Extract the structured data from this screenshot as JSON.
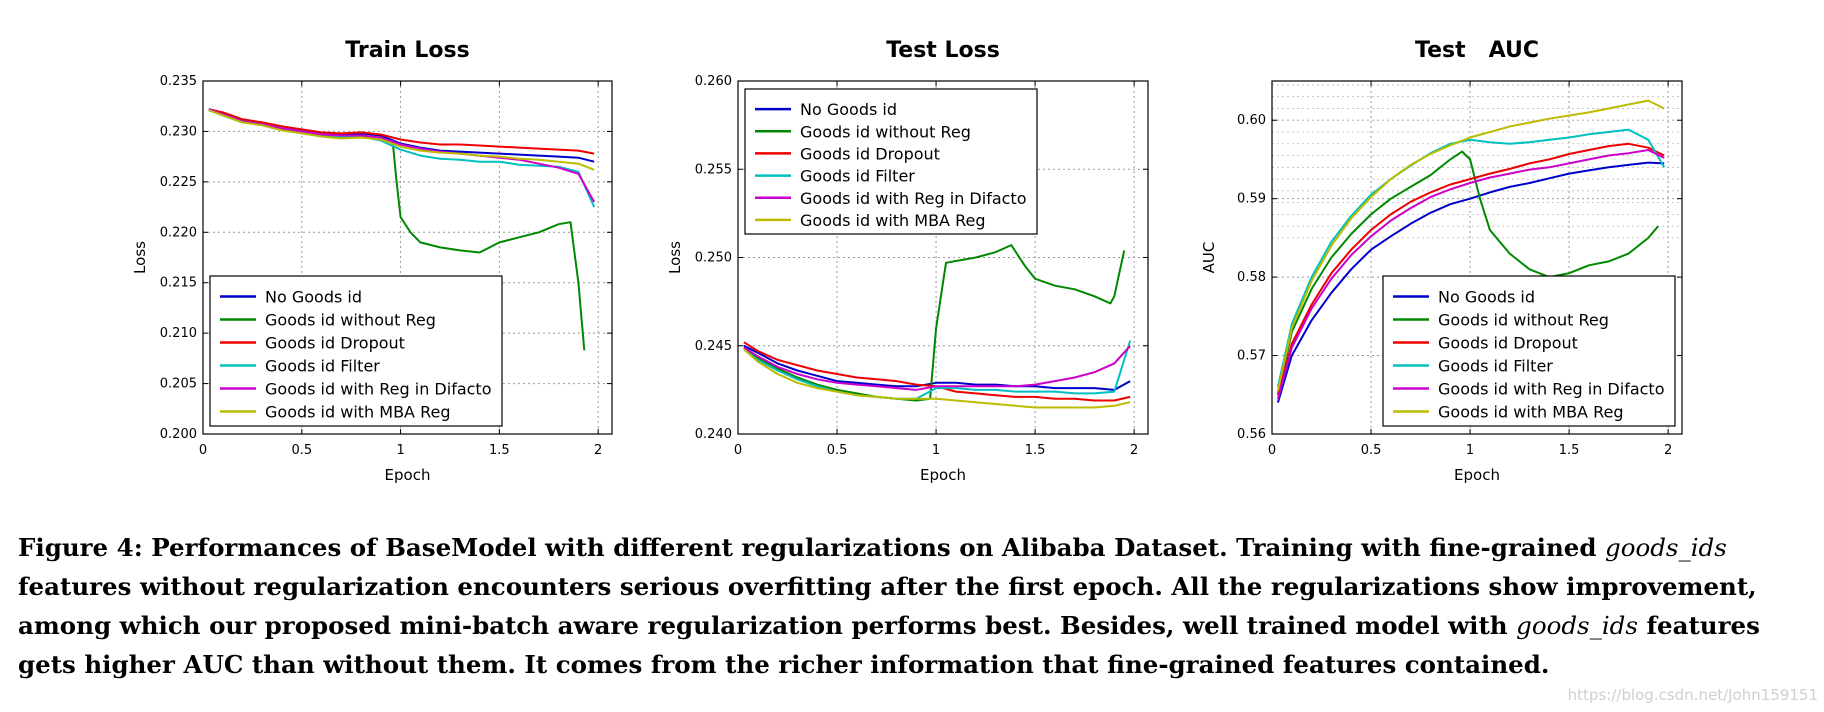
{
  "chart_data": [
    {
      "type": "line",
      "title": "Train Loss",
      "xlabel": "Epoch",
      "ylabel": "Loss",
      "xlim": [
        0,
        2.07
      ],
      "ylim": [
        0.2,
        0.235
      ],
      "xticks": [
        0,
        0.5,
        1,
        1.5,
        2
      ],
      "xtick_labels": [
        "0",
        "0.5",
        "1",
        "1.5",
        "2"
      ],
      "yticks": [
        0.2,
        0.205,
        0.21,
        0.215,
        0.22,
        0.225,
        0.23,
        0.235
      ],
      "ytick_labels": [
        "0.200",
        "0.205",
        "0.210",
        "0.215",
        "0.220",
        "0.225",
        "0.230",
        "0.235"
      ],
      "grid": true,
      "legend": "bottom-left",
      "series": [
        {
          "name": "No Goods id",
          "color": "#0000cc",
          "x": [
            0.03,
            0.1,
            0.2,
            0.3,
            0.4,
            0.5,
            0.6,
            0.7,
            0.8,
            0.9,
            1.0,
            1.1,
            1.2,
            1.3,
            1.4,
            1.5,
            1.6,
            1.7,
            1.8,
            1.9,
            1.98
          ],
          "y": [
            0.2322,
            0.2318,
            0.231,
            0.2308,
            0.2303,
            0.2301,
            0.2298,
            0.2297,
            0.2298,
            0.2296,
            0.2288,
            0.2284,
            0.2281,
            0.228,
            0.2279,
            0.2278,
            0.2277,
            0.2276,
            0.2275,
            0.2274,
            0.227
          ]
        },
        {
          "name": "Goods id without Reg",
          "color": "#008800",
          "x": [
            0.03,
            0.1,
            0.2,
            0.3,
            0.4,
            0.5,
            0.6,
            0.7,
            0.8,
            0.9,
            0.96,
            0.98,
            1.0,
            1.05,
            1.1,
            1.2,
            1.3,
            1.4,
            1.5,
            1.6,
            1.7,
            1.8,
            1.86,
            1.9,
            1.93
          ],
          "y": [
            0.2321,
            0.2316,
            0.2309,
            0.2307,
            0.2302,
            0.2299,
            0.2296,
            0.2295,
            0.2296,
            0.2293,
            0.229,
            0.225,
            0.2215,
            0.22,
            0.219,
            0.2185,
            0.2182,
            0.218,
            0.219,
            0.2195,
            0.22,
            0.2208,
            0.221,
            0.215,
            0.2083
          ]
        },
        {
          "name": "Goods id Dropout",
          "color": "#ee0000",
          "x": [
            0.03,
            0.1,
            0.2,
            0.3,
            0.4,
            0.5,
            0.6,
            0.7,
            0.8,
            0.9,
            1.0,
            1.1,
            1.2,
            1.3,
            1.4,
            1.5,
            1.6,
            1.7,
            1.8,
            1.9,
            1.98
          ],
          "y": [
            0.2322,
            0.2319,
            0.2312,
            0.2309,
            0.2305,
            0.2302,
            0.2299,
            0.2298,
            0.2299,
            0.2297,
            0.2292,
            0.2289,
            0.2287,
            0.2287,
            0.2286,
            0.2285,
            0.2284,
            0.2283,
            0.2282,
            0.2281,
            0.2278
          ]
        },
        {
          "name": "Goods id Filter",
          "color": "#00c0c0",
          "x": [
            0.03,
            0.1,
            0.2,
            0.3,
            0.4,
            0.5,
            0.6,
            0.7,
            0.8,
            0.9,
            1.0,
            1.1,
            1.2,
            1.3,
            1.4,
            1.5,
            1.6,
            1.7,
            1.8,
            1.9,
            1.98
          ],
          "y": [
            0.2321,
            0.2317,
            0.231,
            0.2307,
            0.2303,
            0.23,
            0.2297,
            0.2295,
            0.2295,
            0.2291,
            0.2282,
            0.2276,
            0.2273,
            0.2272,
            0.227,
            0.227,
            0.2267,
            0.2266,
            0.2265,
            0.226,
            0.2225
          ]
        },
        {
          "name": "Goods id with Reg in Difacto",
          "color": "#cc00cc",
          "x": [
            0.03,
            0.1,
            0.2,
            0.3,
            0.4,
            0.5,
            0.6,
            0.7,
            0.8,
            0.9,
            1.0,
            1.1,
            1.2,
            1.3,
            1.4,
            1.5,
            1.6,
            1.7,
            1.8,
            1.9,
            1.98
          ],
          "y": [
            0.2322,
            0.2317,
            0.231,
            0.2307,
            0.2303,
            0.23,
            0.2297,
            0.2296,
            0.2296,
            0.2294,
            0.2287,
            0.2283,
            0.228,
            0.2278,
            0.2276,
            0.2274,
            0.2272,
            0.2268,
            0.2264,
            0.2258,
            0.223
          ]
        },
        {
          "name": "Goods id with MBA Reg",
          "color": "#bbbb00",
          "x": [
            0.03,
            0.1,
            0.2,
            0.3,
            0.4,
            0.5,
            0.6,
            0.7,
            0.8,
            0.9,
            1.0,
            1.1,
            1.2,
            1.3,
            1.4,
            1.5,
            1.6,
            1.7,
            1.8,
            1.9,
            1.98
          ],
          "y": [
            0.2321,
            0.2316,
            0.2309,
            0.2306,
            0.2301,
            0.2298,
            0.2295,
            0.2293,
            0.2294,
            0.2292,
            0.2285,
            0.2281,
            0.2279,
            0.2278,
            0.2276,
            0.2275,
            0.2273,
            0.2272,
            0.227,
            0.2268,
            0.2262
          ]
        }
      ]
    },
    {
      "type": "line",
      "title": "Test Loss",
      "xlabel": "Epoch",
      "ylabel": "Loss",
      "xlim": [
        0,
        2.07
      ],
      "ylim": [
        0.24,
        0.26
      ],
      "xticks": [
        0,
        0.5,
        1,
        1.5,
        2
      ],
      "xtick_labels": [
        "0",
        "0.5",
        "1",
        "1.5",
        "2"
      ],
      "yticks": [
        0.24,
        0.245,
        0.25,
        0.255,
        0.26
      ],
      "ytick_labels": [
        "0.240",
        "0.245",
        "0.250",
        "0.255",
        "0.260"
      ],
      "grid": true,
      "legend": "top-left",
      "series": [
        {
          "name": "No Goods id",
          "color": "#0000cc",
          "x": [
            0.03,
            0.1,
            0.2,
            0.3,
            0.4,
            0.5,
            0.6,
            0.7,
            0.8,
            0.9,
            1.0,
            1.1,
            1.2,
            1.3,
            1.4,
            1.5,
            1.6,
            1.7,
            1.8,
            1.9,
            1.98
          ],
          "y": [
            0.245,
            0.2446,
            0.244,
            0.2436,
            0.2433,
            0.243,
            0.2429,
            0.2428,
            0.2427,
            0.2427,
            0.2429,
            0.2429,
            0.2428,
            0.2428,
            0.2427,
            0.2427,
            0.2426,
            0.2426,
            0.2426,
            0.2425,
            0.243
          ]
        },
        {
          "name": "Goods id without Reg",
          "color": "#008800",
          "x": [
            0.03,
            0.1,
            0.2,
            0.3,
            0.4,
            0.5,
            0.6,
            0.7,
            0.8,
            0.9,
            0.97,
            1.0,
            1.05,
            1.1,
            1.2,
            1.3,
            1.38,
            1.45,
            1.5,
            1.6,
            1.7,
            1.8,
            1.88,
            1.9,
            1.95
          ],
          "y": [
            0.2449,
            0.2443,
            0.2437,
            0.2432,
            0.2428,
            0.2425,
            0.2423,
            0.2421,
            0.242,
            0.2419,
            0.242,
            0.246,
            0.2497,
            0.2498,
            0.25,
            0.2503,
            0.2507,
            0.2495,
            0.2488,
            0.2484,
            0.2482,
            0.2478,
            0.2474,
            0.2478,
            0.2504
          ]
        },
        {
          "name": "Goods id Dropout",
          "color": "#ee0000",
          "x": [
            0.03,
            0.1,
            0.2,
            0.3,
            0.4,
            0.5,
            0.6,
            0.7,
            0.8,
            0.9,
            1.0,
            1.1,
            1.2,
            1.3,
            1.4,
            1.5,
            1.6,
            1.7,
            1.8,
            1.9,
            1.98
          ],
          "y": [
            0.2452,
            0.2447,
            0.2442,
            0.2439,
            0.2436,
            0.2434,
            0.2432,
            0.2431,
            0.243,
            0.2428,
            0.2427,
            0.2424,
            0.2423,
            0.2422,
            0.2421,
            0.2421,
            0.242,
            0.242,
            0.2419,
            0.2419,
            0.2421
          ]
        },
        {
          "name": "Goods id Filter",
          "color": "#00c0c0",
          "x": [
            0.03,
            0.1,
            0.2,
            0.3,
            0.4,
            0.5,
            0.6,
            0.7,
            0.8,
            0.9,
            1.0,
            1.1,
            1.2,
            1.3,
            1.4,
            1.5,
            1.6,
            1.7,
            1.8,
            1.9,
            1.98
          ],
          "y": [
            0.2448,
            0.2442,
            0.2436,
            0.2431,
            0.2427,
            0.2424,
            0.2422,
            0.2421,
            0.242,
            0.242,
            0.2426,
            0.2426,
            0.2425,
            0.2425,
            0.2424,
            0.2424,
            0.2424,
            0.2423,
            0.2423,
            0.2424,
            0.2453
          ]
        },
        {
          "name": "Goods id with Reg in Difacto",
          "color": "#cc00cc",
          "x": [
            0.03,
            0.1,
            0.2,
            0.3,
            0.4,
            0.5,
            0.6,
            0.7,
            0.8,
            0.9,
            1.0,
            1.1,
            1.2,
            1.3,
            1.4,
            1.5,
            1.6,
            1.7,
            1.8,
            1.9,
            1.98
          ],
          "y": [
            0.2449,
            0.2444,
            0.2438,
            0.2434,
            0.2431,
            0.2429,
            0.2428,
            0.2427,
            0.2426,
            0.2425,
            0.2427,
            0.2427,
            0.2427,
            0.2427,
            0.2427,
            0.2428,
            0.243,
            0.2432,
            0.2435,
            0.244,
            0.245
          ]
        },
        {
          "name": "Goods id with MBA Reg",
          "color": "#bbbb00",
          "x": [
            0.03,
            0.1,
            0.2,
            0.3,
            0.4,
            0.5,
            0.6,
            0.7,
            0.8,
            0.9,
            1.0,
            1.1,
            1.2,
            1.3,
            1.4,
            1.5,
            1.6,
            1.7,
            1.8,
            1.9,
            1.98
          ],
          "y": [
            0.2448,
            0.2441,
            0.2434,
            0.2429,
            0.2426,
            0.2424,
            0.2422,
            0.2421,
            0.242,
            0.242,
            0.242,
            0.2419,
            0.2418,
            0.2417,
            0.2416,
            0.2415,
            0.2415,
            0.2415,
            0.2415,
            0.2416,
            0.2418
          ]
        }
      ]
    },
    {
      "type": "line",
      "title": "Test   AUC",
      "xlabel": "Epoch",
      "ylabel": "AUC",
      "xlim": [
        0,
        2.07
      ],
      "ylim": [
        0.56,
        0.605
      ],
      "xticks": [
        0,
        0.5,
        1,
        1.5,
        2
      ],
      "xtick_labels": [
        "0",
        "0.5",
        "1",
        "1.5",
        "2"
      ],
      "yticks": [
        0.56,
        0.57,
        0.58,
        0.59,
        0.6
      ],
      "ytick_labels": [
        "0.56",
        "0.57",
        "0.58",
        "0.59",
        "0.60"
      ],
      "grid": true,
      "legend": "bottom-right",
      "series": [
        {
          "name": "No Goods id",
          "color": "#0000cc",
          "x": [
            0.03,
            0.1,
            0.2,
            0.3,
            0.4,
            0.5,
            0.6,
            0.7,
            0.8,
            0.9,
            1.0,
            1.1,
            1.2,
            1.3,
            1.4,
            1.5,
            1.6,
            1.7,
            1.8,
            1.9,
            1.98
          ],
          "y": [
            0.564,
            0.57,
            0.5745,
            0.578,
            0.581,
            0.5835,
            0.5852,
            0.5868,
            0.5882,
            0.5893,
            0.59,
            0.5908,
            0.5915,
            0.592,
            0.5926,
            0.5932,
            0.5936,
            0.594,
            0.5943,
            0.5946,
            0.5945
          ]
        },
        {
          "name": "Goods id without Reg",
          "color": "#008800",
          "x": [
            0.03,
            0.1,
            0.2,
            0.3,
            0.4,
            0.5,
            0.6,
            0.7,
            0.8,
            0.9,
            0.96,
            1.0,
            1.05,
            1.1,
            1.2,
            1.3,
            1.4,
            1.5,
            1.6,
            1.7,
            1.8,
            1.9,
            1.95
          ],
          "y": [
            0.565,
            0.573,
            0.5785,
            0.5825,
            0.5855,
            0.588,
            0.59,
            0.5915,
            0.593,
            0.595,
            0.596,
            0.595,
            0.59,
            0.586,
            0.583,
            0.581,
            0.58,
            0.5805,
            0.5815,
            0.582,
            0.583,
            0.585,
            0.5865
          ]
        },
        {
          "name": "Goods id Dropout",
          "color": "#ee0000",
          "x": [
            0.03,
            0.1,
            0.2,
            0.3,
            0.4,
            0.5,
            0.6,
            0.7,
            0.8,
            0.9,
            1.0,
            1.1,
            1.2,
            1.3,
            1.4,
            1.5,
            1.6,
            1.7,
            1.8,
            1.9,
            1.98
          ],
          "y": [
            0.565,
            0.5715,
            0.5765,
            0.5805,
            0.5835,
            0.586,
            0.588,
            0.5896,
            0.5908,
            0.5918,
            0.5925,
            0.5932,
            0.5938,
            0.5945,
            0.595,
            0.5957,
            0.5962,
            0.5967,
            0.597,
            0.5965,
            0.5955
          ]
        },
        {
          "name": "Goods id Filter",
          "color": "#00c0c0",
          "x": [
            0.03,
            0.1,
            0.2,
            0.3,
            0.4,
            0.5,
            0.6,
            0.7,
            0.8,
            0.9,
            1.0,
            1.1,
            1.2,
            1.3,
            1.4,
            1.5,
            1.6,
            1.7,
            1.8,
            1.9,
            1.98
          ],
          "y": [
            0.566,
            0.574,
            0.58,
            0.5845,
            0.5878,
            0.5905,
            0.5925,
            0.5942,
            0.5958,
            0.597,
            0.5975,
            0.5972,
            0.597,
            0.5972,
            0.5975,
            0.5978,
            0.5982,
            0.5985,
            0.5988,
            0.5975,
            0.594
          ]
        },
        {
          "name": "Goods id with Reg in Difacto",
          "color": "#cc00cc",
          "x": [
            0.03,
            0.1,
            0.2,
            0.3,
            0.4,
            0.5,
            0.6,
            0.7,
            0.8,
            0.9,
            1.0,
            1.1,
            1.2,
            1.3,
            1.4,
            1.5,
            1.6,
            1.7,
            1.8,
            1.9,
            1.98
          ],
          "y": [
            0.5645,
            0.571,
            0.576,
            0.5798,
            0.5828,
            0.5852,
            0.5872,
            0.5888,
            0.5902,
            0.5912,
            0.592,
            0.5927,
            0.5932,
            0.5937,
            0.594,
            0.5945,
            0.595,
            0.5955,
            0.5958,
            0.5962,
            0.5952
          ]
        },
        {
          "name": "Goods id with MBA Reg",
          "color": "#bbbb00",
          "x": [
            0.03,
            0.1,
            0.2,
            0.3,
            0.4,
            0.5,
            0.6,
            0.7,
            0.8,
            0.9,
            1.0,
            1.1,
            1.2,
            1.3,
            1.4,
            1.5,
            1.6,
            1.7,
            1.8,
            1.9,
            1.98
          ],
          "y": [
            0.5655,
            0.5735,
            0.5795,
            0.584,
            0.5875,
            0.5902,
            0.5925,
            0.5943,
            0.5957,
            0.5968,
            0.5978,
            0.5985,
            0.5992,
            0.5997,
            0.6002,
            0.6006,
            0.601,
            0.6015,
            0.602,
            0.6025,
            0.6015
          ]
        }
      ]
    }
  ],
  "caption": {
    "line1_bold": "Figure 4: Performances of BaseModel with different regularizations on Alibaba Dataset. Training with fine-grained ",
    "line1_italic": "goods_ids",
    "line2_bold": " features without regularization encounters serious overfitting after the first epoch. All the regularizations show improvement, among which our proposed mini-batch aware regularization performs best. Besides, well trained model with ",
    "line2_italic": "goods_ids",
    "line3_bold": " features gets higher AUC than without them. It comes from the richer information that fine-grained features contained."
  },
  "watermark": "https://blog.csdn.net/John159151"
}
